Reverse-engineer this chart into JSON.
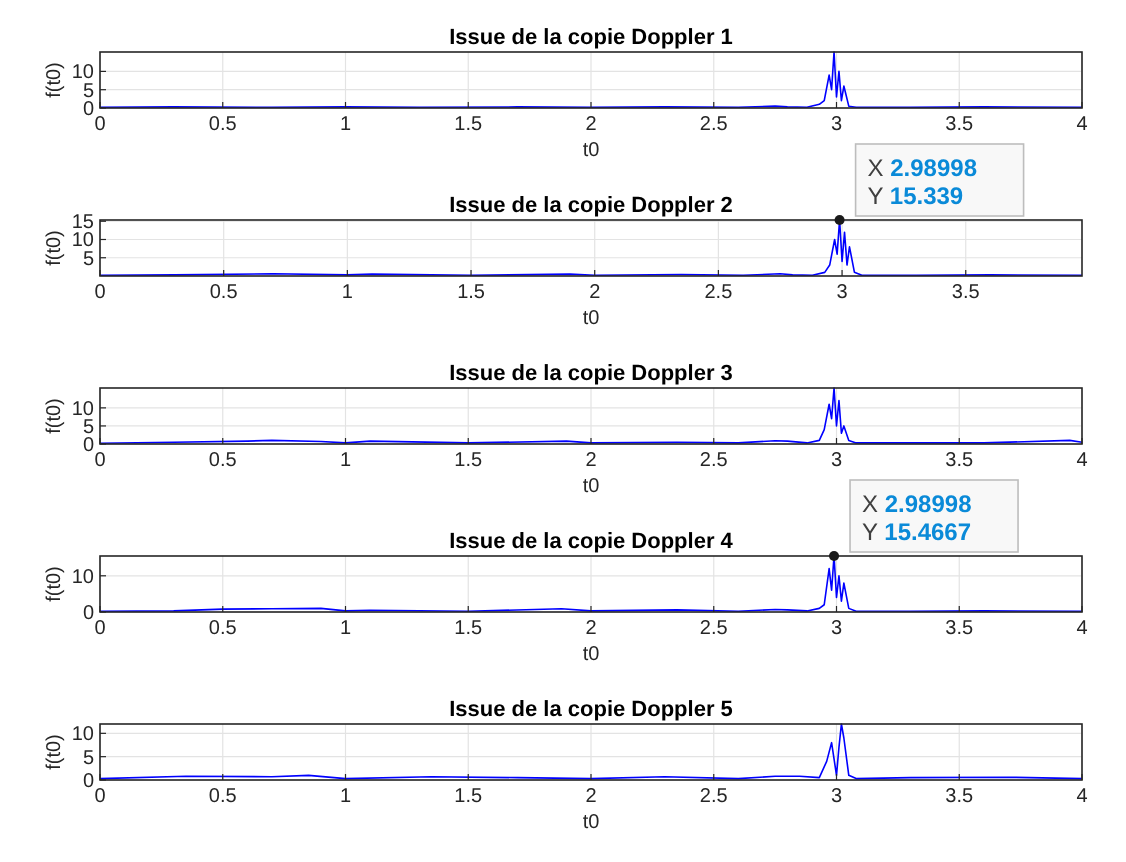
{
  "chart_data": [
    {
      "type": "line",
      "title": "Issue de la copie Doppler 1",
      "xlabel": "t0",
      "ylabel": "f(t0)",
      "xlim": [
        0,
        4
      ],
      "ylim": [
        0,
        15.3
      ],
      "xticks": [
        0,
        0.5,
        1,
        1.5,
        2,
        2.5,
        3,
        3.5,
        4
      ],
      "yticks": [
        0,
        5,
        10
      ],
      "grid": true,
      "series": [
        {
          "color": "#0000ff",
          "x": [
            0,
            0.3,
            0.7,
            1,
            1.3,
            1.7,
            2,
            2.3,
            2.6,
            2.75,
            2.8,
            2.88,
            2.93,
            2.95,
            2.97,
            2.98,
            2.99,
            3.0,
            3.01,
            3.02,
            3.03,
            3.05,
            3.08,
            3.3,
            3.6,
            4
          ],
          "values": [
            0.2,
            0.3,
            0.2,
            0.3,
            0.2,
            0.3,
            0.2,
            0.3,
            0.2,
            0.5,
            0.3,
            0.2,
            1,
            2,
            9,
            5,
            15.3,
            3,
            10,
            2,
            6,
            0.5,
            0.2,
            0.2,
            0.3,
            0.2
          ]
        }
      ]
    },
    {
      "type": "line",
      "title": "Issue de la copie Doppler 2",
      "xlabel": "t0",
      "ylabel": "f(t0)",
      "xlim": [
        0,
        3.97
      ],
      "ylim": [
        0,
        15.339
      ],
      "xticks": [
        0,
        0.5,
        1,
        1.5,
        2,
        2.5,
        3,
        3.5
      ],
      "yticks": [
        5,
        10,
        15
      ],
      "grid": true,
      "annotations": [
        {
          "text": "X 2.98998\nY 15.339",
          "x": 2.98998,
          "y": 15.339
        }
      ],
      "series": [
        {
          "color": "#0000ff",
          "x": [
            0,
            0.3,
            0.7,
            1,
            1.1,
            1.5,
            1.9,
            2,
            2.35,
            2.6,
            2.75,
            2.8,
            2.88,
            2.93,
            2.95,
            2.97,
            2.98,
            2.98998,
            3.0,
            3.01,
            3.02,
            3.03,
            3.05,
            3.08,
            3.3,
            3.6,
            3.97
          ],
          "values": [
            0.2,
            0.3,
            0.6,
            0.3,
            0.5,
            0.2,
            0.5,
            0.2,
            0.4,
            0.2,
            0.6,
            0.3,
            0.2,
            1,
            3,
            10,
            6,
            15.339,
            4,
            12,
            3,
            8,
            1,
            0.2,
            0.2,
            0.3,
            0.2
          ]
        }
      ]
    },
    {
      "type": "line",
      "title": "Issue de la copie Doppler 3",
      "xlabel": "t0",
      "ylabel": "f(t0)",
      "xlim": [
        0,
        4
      ],
      "ylim": [
        0,
        15.5
      ],
      "xticks": [
        0,
        0.5,
        1,
        1.5,
        2,
        2.5,
        3,
        3.5,
        4
      ],
      "yticks": [
        0,
        5,
        10
      ],
      "grid": true,
      "series": [
        {
          "color": "#0000ff",
          "x": [
            0,
            0.3,
            0.6,
            0.7,
            0.9,
            1,
            1.1,
            1.5,
            1.9,
            2,
            2.35,
            2.6,
            2.75,
            2.8,
            2.88,
            2.93,
            2.95,
            2.97,
            2.98,
            2.99,
            3.0,
            3.01,
            3.02,
            3.03,
            3.05,
            3.08,
            3.3,
            3.6,
            3.95,
            4
          ],
          "values": [
            0.2,
            0.5,
            0.8,
            1,
            0.7,
            0.3,
            0.8,
            0.3,
            0.8,
            0.3,
            0.5,
            0.3,
            0.9,
            0.8,
            0.3,
            1,
            4,
            11,
            7,
            15.5,
            5,
            12,
            3,
            5,
            1,
            0.3,
            0.3,
            0.3,
            1,
            0.5
          ]
        }
      ]
    },
    {
      "type": "line",
      "title": "Issue de la copie Doppler 4",
      "xlabel": "t0",
      "ylabel": "f(t0)",
      "xlim": [
        0,
        4
      ],
      "ylim": [
        0,
        15.4667
      ],
      "xticks": [
        0,
        0.5,
        1,
        1.5,
        2,
        2.5,
        3,
        3.5,
        4
      ],
      "yticks": [
        0,
        10
      ],
      "grid": true,
      "annotations": [
        {
          "text": "X 2.98998\nY 15.4667",
          "x": 2.98998,
          "y": 15.4667
        }
      ],
      "series": [
        {
          "color": "#0000ff",
          "x": [
            0,
            0.3,
            0.5,
            0.7,
            0.9,
            1,
            1.1,
            1.5,
            1.88,
            2,
            2.35,
            2.6,
            2.75,
            2.8,
            2.88,
            2.93,
            2.95,
            2.97,
            2.98,
            2.98998,
            3.0,
            3.01,
            3.02,
            3.03,
            3.05,
            3.08,
            3.3,
            3.6,
            4
          ],
          "values": [
            0.2,
            0.3,
            0.8,
            0.9,
            1,
            0.3,
            0.5,
            0.2,
            0.9,
            0.3,
            0.6,
            0.2,
            0.7,
            0.6,
            0.3,
            1,
            2,
            12,
            6,
            15.4667,
            4,
            10,
            3,
            8,
            1,
            0.2,
            0.2,
            0.3,
            0.2
          ]
        }
      ]
    },
    {
      "type": "line",
      "title": "Issue de la copie Doppler 5",
      "xlabel": "t0",
      "ylabel": "f(t0)",
      "xlim": [
        0,
        4
      ],
      "ylim": [
        0,
        12
      ],
      "xticks": [
        0,
        0.5,
        1,
        1.5,
        2,
        2.5,
        3,
        3.5,
        4
      ],
      "yticks": [
        0,
        5,
        10
      ],
      "grid": true,
      "series": [
        {
          "color": "#0000ff",
          "x": [
            0,
            0.35,
            0.7,
            0.85,
            1,
            1.35,
            1.7,
            2,
            2.3,
            2.6,
            2.75,
            2.85,
            2.93,
            2.96,
            2.98,
            3.0,
            3.01,
            3.02,
            3.03,
            3.05,
            3.08,
            3.3,
            3.7,
            4
          ],
          "values": [
            0.3,
            0.8,
            0.7,
            1,
            0.3,
            0.7,
            0.5,
            0.3,
            0.7,
            0.3,
            0.8,
            0.8,
            0.5,
            4,
            8,
            1,
            7,
            12,
            9,
            1,
            0.3,
            0.5,
            0.6,
            0.3
          ]
        }
      ]
    }
  ]
}
